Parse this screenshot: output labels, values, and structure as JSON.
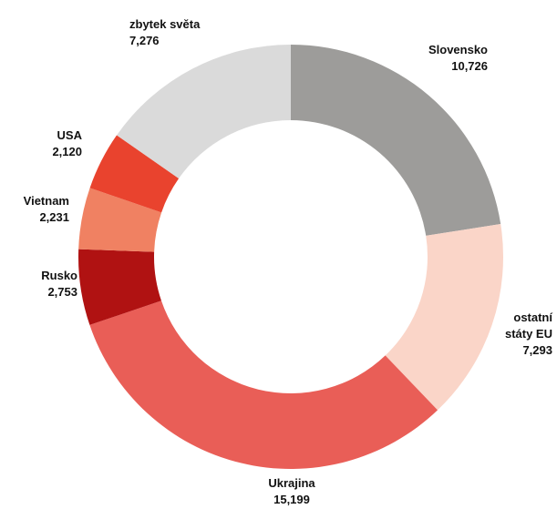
{
  "chart_data": {
    "type": "donut",
    "categories": [
      "Slovensko",
      "ostatní státy EU",
      "Ukrajina",
      "Rusko",
      "Vietnam",
      "USA",
      "zbytek světa"
    ],
    "values": [
      10726,
      7293,
      15199,
      2753,
      2231,
      2120,
      7276
    ],
    "value_labels": [
      "10,726",
      "7,293",
      "15,199",
      "2,753",
      "2,231",
      "2,120",
      "7,276"
    ],
    "colors": [
      "#9d9c9a",
      "#fad5c8",
      "#e95e57",
      "#b01212",
      "#f08162",
      "#e9432e",
      "#dadada"
    ]
  }
}
